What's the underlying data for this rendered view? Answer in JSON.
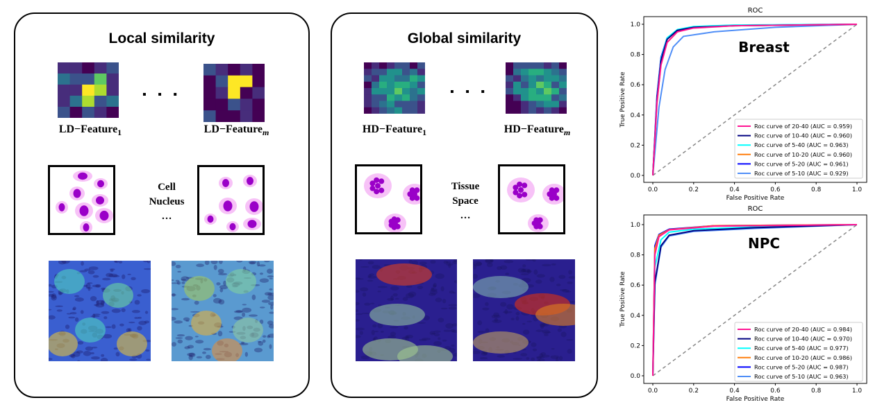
{
  "local_panel": {
    "title": "Local similarity",
    "feature_first": {
      "base": "LD−Feature",
      "sub": "1"
    },
    "feature_last": {
      "base": "LD−Feature",
      "sub": "m"
    },
    "ellipsis": "▪ ▪ ▪",
    "unit_line1": "Cell",
    "unit_line2": "Nucleus",
    "unit_ellipsis": "…"
  },
  "global_panel": {
    "title": "Global similarity",
    "feature_first": {
      "base": "HD−Feature",
      "sub": "1"
    },
    "feature_last": {
      "base": "HD−Feature",
      "sub": "m"
    },
    "ellipsis": "▪ ▪ ▪",
    "unit_line1": "Tissue",
    "unit_line2": "Space",
    "unit_ellipsis": "…"
  },
  "chart_data": [
    {
      "type": "line",
      "title": "ROC",
      "annotation": "Breast",
      "xlabel": "False Positive Rate",
      "ylabel": "True Positive Rate",
      "xlim": [
        0,
        1
      ],
      "ylim": [
        0,
        1
      ],
      "xticks": [
        "0.0",
        "0.2",
        "0.4",
        "0.6",
        "0.8",
        "1.0"
      ],
      "yticks": [
        "0.0",
        "0.2",
        "0.4",
        "0.6",
        "0.8",
        "1.0"
      ],
      "legend_position": "lower-right",
      "grid": false,
      "chance_line": true,
      "series": [
        {
          "name": "Roc curve of 20-40 (AUC = 0.959)",
          "color": "#ff1493",
          "x": [
            0,
            0.02,
            0.04,
            0.07,
            0.12,
            0.2,
            0.4,
            1
          ],
          "y": [
            0,
            0.48,
            0.73,
            0.88,
            0.95,
            0.975,
            0.99,
            1
          ]
        },
        {
          "name": "Roc curve of 10-40 (AUC = 0.960)",
          "color": "#000080",
          "x": [
            0,
            0.02,
            0.04,
            0.07,
            0.12,
            0.2,
            0.4,
            1
          ],
          "y": [
            0,
            0.5,
            0.76,
            0.9,
            0.96,
            0.98,
            0.99,
            1
          ]
        },
        {
          "name": "Roc curve of 5-40 (AUC = 0.963)",
          "color": "#00ffff",
          "x": [
            0,
            0.02,
            0.04,
            0.07,
            0.12,
            0.2,
            0.4,
            1
          ],
          "y": [
            0,
            0.5,
            0.77,
            0.91,
            0.965,
            0.985,
            0.995,
            1
          ]
        },
        {
          "name": "Roc curve of 10-20 (AUC = 0.960)",
          "color": "#ff7f0e",
          "x": [
            0,
            0.02,
            0.04,
            0.07,
            0.12,
            0.2,
            0.4,
            1
          ],
          "y": [
            0,
            0.47,
            0.74,
            0.88,
            0.95,
            0.978,
            0.99,
            1
          ]
        },
        {
          "name": "Roc curve of 5-20 (AUC = 0.961)",
          "color": "#0000ff",
          "x": [
            0,
            0.02,
            0.04,
            0.07,
            0.12,
            0.2,
            0.4,
            1
          ],
          "y": [
            0,
            0.52,
            0.78,
            0.91,
            0.96,
            0.982,
            0.993,
            1
          ]
        },
        {
          "name": "Roc curve of 5-10 (AUC = 0.929)",
          "color": "#4f8ef7",
          "x": [
            0,
            0.03,
            0.06,
            0.1,
            0.15,
            0.3,
            0.6,
            1
          ],
          "y": [
            0,
            0.45,
            0.7,
            0.85,
            0.92,
            0.95,
            0.98,
            1
          ]
        }
      ]
    },
    {
      "type": "line",
      "title": "ROC",
      "annotation": "NPC",
      "xlabel": "False Positive Rate",
      "ylabel": "True Positive Rate",
      "xlim": [
        0,
        1
      ],
      "ylim": [
        0,
        1
      ],
      "xticks": [
        "0.0",
        "0.2",
        "0.4",
        "0.6",
        "0.8",
        "1.0"
      ],
      "yticks": [
        "0.0",
        "0.2",
        "0.4",
        "0.6",
        "0.8",
        "1.0"
      ],
      "legend_position": "lower-right",
      "grid": false,
      "chance_line": true,
      "series": [
        {
          "name": "Roc curve of 20-40 (AUC = 0.984)",
          "color": "#ff1493",
          "x": [
            0,
            0.01,
            0.03,
            0.08,
            0.3,
            1
          ],
          "y": [
            0,
            0.8,
            0.92,
            0.965,
            0.99,
            1
          ]
        },
        {
          "name": "Roc curve of 10-40 (AUC = 0.970)",
          "color": "#000080",
          "x": [
            0,
            0.01,
            0.04,
            0.08,
            0.2,
            0.5,
            1
          ],
          "y": [
            0,
            0.62,
            0.86,
            0.93,
            0.96,
            0.98,
            1
          ]
        },
        {
          "name": "Roc curve of 5-40 (AUC = 0.977)",
          "color": "#00ffff",
          "x": [
            0,
            0.01,
            0.04,
            0.08,
            0.2,
            0.5,
            1
          ],
          "y": [
            0,
            0.72,
            0.9,
            0.95,
            0.97,
            0.985,
            1
          ]
        },
        {
          "name": "Roc curve of 10-20 (AUC = 0.986)",
          "color": "#ff7f0e",
          "x": [
            0,
            0.01,
            0.03,
            0.08,
            0.3,
            1
          ],
          "y": [
            0,
            0.84,
            0.93,
            0.967,
            0.993,
            1
          ]
        },
        {
          "name": "Roc curve of 5-20 (AUC = 0.987)",
          "color": "#0000ff",
          "x": [
            0,
            0.01,
            0.03,
            0.08,
            0.3,
            1
          ],
          "y": [
            0,
            0.86,
            0.935,
            0.97,
            0.993,
            1
          ]
        },
        {
          "name": "Roc curve of 5-10 (AUC = 0.963)",
          "color": "#4f8ef7",
          "x": [
            0,
            0.01,
            0.04,
            0.08,
            0.2,
            0.5,
            1
          ],
          "y": [
            0,
            0.6,
            0.85,
            0.925,
            0.955,
            0.975,
            1
          ]
        }
      ]
    }
  ]
}
